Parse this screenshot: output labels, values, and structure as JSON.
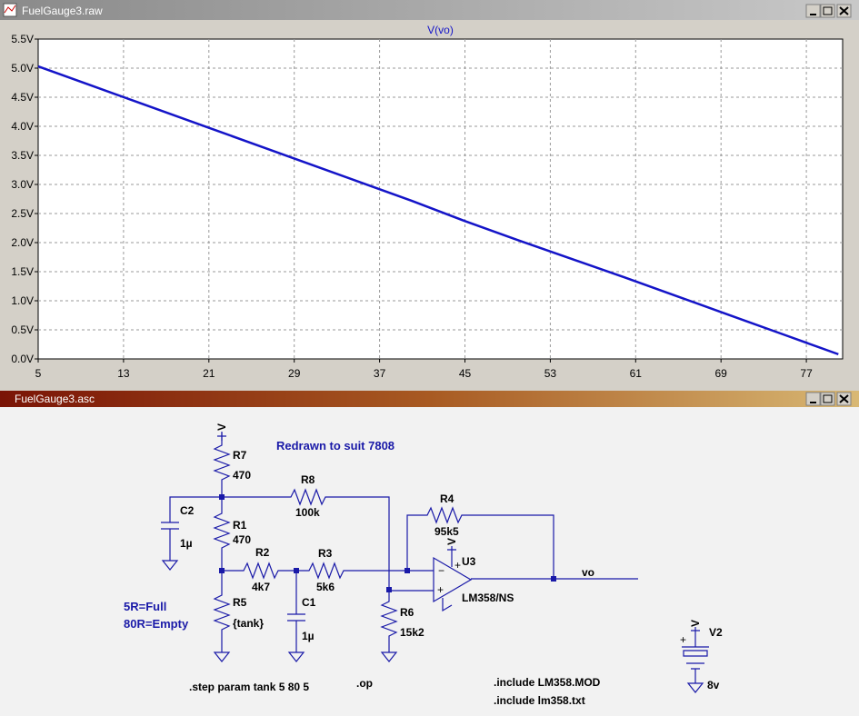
{
  "plot_window": {
    "title": "FuelGauge3.raw"
  },
  "chart_data": {
    "type": "line",
    "x": [
      5,
      10,
      15,
      20,
      25,
      30,
      35,
      40,
      45,
      50,
      55,
      60,
      65,
      70,
      75,
      80
    ],
    "series": [
      {
        "name": "V(vo)",
        "color": "#1414c8",
        "values": [
          5.03,
          4.7,
          4.37,
          4.04,
          3.71,
          3.38,
          3.05,
          2.72,
          2.37,
          2.04,
          1.72,
          1.4,
          1.07,
          0.74,
          0.41,
          0.08
        ]
      }
    ],
    "xlim": [
      5,
      80.4
    ],
    "ylim": [
      0,
      5.5
    ],
    "xticks": [
      5,
      13,
      21,
      29,
      37,
      45,
      53,
      61,
      69,
      77
    ],
    "yticks": [
      {
        "value": 0,
        "label": "0.0V"
      },
      {
        "value": 0.5,
        "label": "0.5V"
      },
      {
        "value": 1,
        "label": "1.0V"
      },
      {
        "value": 1.5,
        "label": "1.5V"
      },
      {
        "value": 2,
        "label": "2.0V"
      },
      {
        "value": 2.5,
        "label": "2.5V"
      },
      {
        "value": 3,
        "label": "3.0V"
      },
      {
        "value": 3.5,
        "label": "3.5V"
      },
      {
        "value": 4,
        "label": "4.0V"
      },
      {
        "value": 4.5,
        "label": "4.5V"
      },
      {
        "value": 5,
        "label": "5.0V"
      },
      {
        "value": 5.5,
        "label": "5.5V"
      }
    ],
    "grid": true
  },
  "schematic_window": {
    "title": "FuelGauge3.asc",
    "labels": [
      "R7",
      "470",
      "R8",
      "100k",
      "C2",
      "1µ",
      "R1",
      "470",
      "R2",
      "4k7",
      "R3",
      "5k6",
      "C1",
      "1µ",
      "R5",
      "{tank}",
      "R6",
      "15k2",
      "R4",
      "95k5",
      "U3",
      "LM358/NS",
      "vo",
      "V2",
      "8v",
      "Redrawn to suit 7808",
      "5R=Full",
      "80R=Empty",
      ".step param tank 5 80 5",
      ".op",
      ".include LM358.MOD",
      ".include lm358.txt",
      "V",
      "V",
      "V"
    ]
  }
}
